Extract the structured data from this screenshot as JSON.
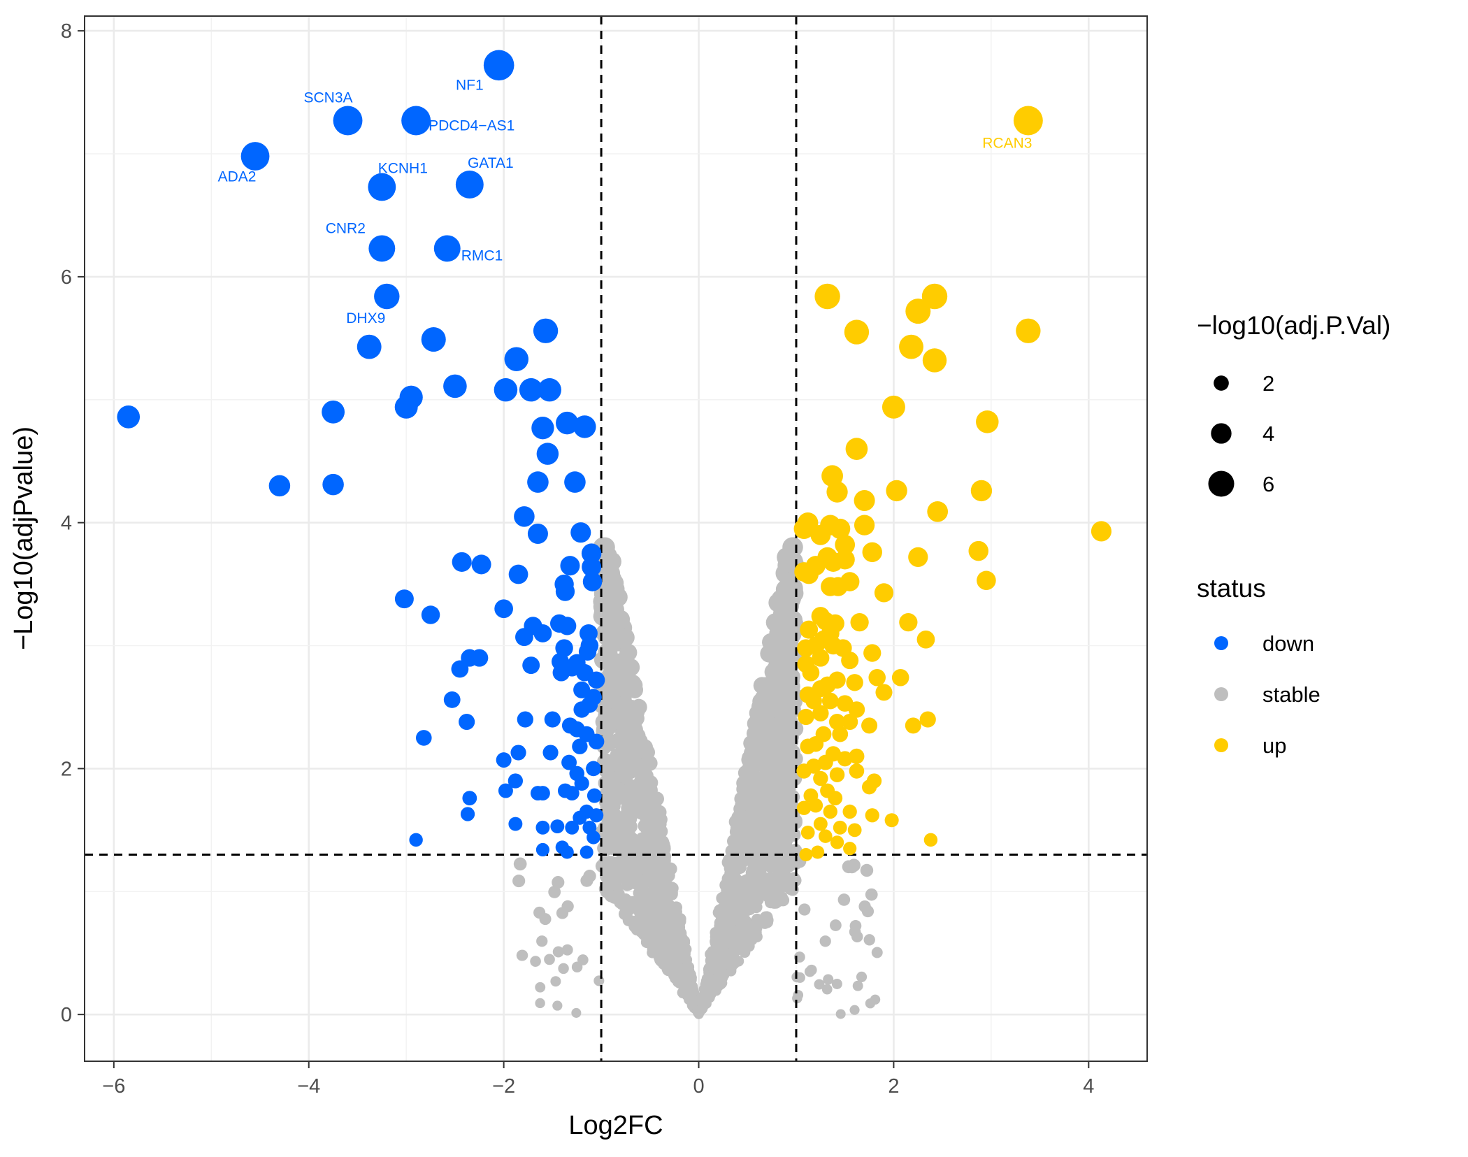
{
  "chart_data": {
    "type": "scatter",
    "title": "",
    "xlabel": "Log2FC",
    "ylabel": "−Log10(adjPvalue)",
    "xlim": [
      -6.3,
      4.6
    ],
    "ylim": [
      -0.38,
      8.12
    ],
    "x_ticks": [
      -6,
      -4,
      -2,
      0,
      2,
      4
    ],
    "x_tick_labels": [
      "−6",
      "−4",
      "−2",
      "0",
      "2",
      "4"
    ],
    "y_ticks": [
      0,
      2,
      4,
      6,
      8
    ],
    "y_tick_labels": [
      "0",
      "2",
      "4",
      "6",
      "8"
    ],
    "grid": true,
    "thresholds": {
      "x": [
        -1,
        1
      ],
      "y": 1.3
    },
    "colors": {
      "down": "#0066ff",
      "stable": "#bebebe",
      "up": "#ffcc00"
    },
    "legend": {
      "size_title": "−log10(adj.P.Val)",
      "size_items": [
        {
          "label": "2",
          "value": 2
        },
        {
          "label": "4",
          "value": 4
        },
        {
          "label": "6",
          "value": 6
        }
      ],
      "color_title": "status",
      "color_items": [
        {
          "label": "down",
          "status": "down"
        },
        {
          "label": "stable",
          "status": "stable"
        },
        {
          "label": "up",
          "status": "up"
        }
      ],
      "placement": "right"
    },
    "labels": [
      {
        "gene": "NF1",
        "x": -2.05,
        "y": 7.72,
        "status": "down"
      },
      {
        "gene": "SCN3A",
        "x": -3.6,
        "y": 7.27,
        "status": "down"
      },
      {
        "gene": "PDCD4−AS1",
        "x": -2.9,
        "y": 7.27,
        "status": "down"
      },
      {
        "gene": "ADA2",
        "x": -4.55,
        "y": 6.98,
        "status": "down"
      },
      {
        "gene": "KCNH1",
        "x": -3.25,
        "y": 6.73,
        "status": "down"
      },
      {
        "gene": "GATA1",
        "x": -2.35,
        "y": 6.75,
        "status": "down"
      },
      {
        "gene": "CNR2",
        "x": -3.25,
        "y": 6.23,
        "status": "down"
      },
      {
        "gene": "RMC1",
        "x": -2.58,
        "y": 6.23,
        "status": "down"
      },
      {
        "gene": "DHX9",
        "x": -3.2,
        "y": 5.84,
        "status": "down"
      },
      {
        "gene": "RCAN3",
        "x": 3.38,
        "y": 7.27,
        "status": "up"
      }
    ],
    "series": [
      {
        "name": "down",
        "points": [
          [
            -2.05,
            7.72
          ],
          [
            -3.6,
            7.27
          ],
          [
            -2.9,
            7.27
          ],
          [
            -4.55,
            6.98
          ],
          [
            -3.25,
            6.73
          ],
          [
            -2.35,
            6.75
          ],
          [
            -3.25,
            6.23
          ],
          [
            -2.58,
            6.23
          ],
          [
            -3.2,
            5.84
          ],
          [
            -5.85,
            4.86
          ],
          [
            -4.3,
            4.3
          ],
          [
            -3.75,
            4.31
          ],
          [
            -3.75,
            4.9
          ],
          [
            -3.0,
            4.94
          ],
          [
            -2.95,
            5.02
          ],
          [
            -3.38,
            5.43
          ],
          [
            -2.72,
            5.49
          ],
          [
            -2.5,
            5.11
          ],
          [
            -1.87,
            5.33
          ],
          [
            -1.57,
            5.56
          ],
          [
            -1.98,
            5.08
          ],
          [
            -1.72,
            5.08
          ],
          [
            -1.53,
            5.08
          ],
          [
            -1.6,
            4.77
          ],
          [
            -1.35,
            4.81
          ],
          [
            -1.17,
            4.78
          ],
          [
            -1.55,
            4.56
          ],
          [
            -1.65,
            4.33
          ],
          [
            -1.27,
            4.33
          ],
          [
            -1.79,
            4.05
          ],
          [
            -1.65,
            3.91
          ],
          [
            -1.21,
            3.92
          ],
          [
            -1.1,
            3.75
          ],
          [
            -1.1,
            3.64
          ],
          [
            -2.43,
            3.68
          ],
          [
            -2.23,
            3.66
          ],
          [
            -1.85,
            3.58
          ],
          [
            -1.32,
            3.65
          ],
          [
            -1.38,
            3.5
          ],
          [
            -1.37,
            3.44
          ],
          [
            -1.09,
            3.52
          ],
          [
            -3.02,
            3.38
          ],
          [
            -2.75,
            3.25
          ],
          [
            -2.0,
            3.3
          ],
          [
            -1.7,
            3.16
          ],
          [
            -1.6,
            3.1
          ],
          [
            -1.79,
            3.07
          ],
          [
            -1.43,
            3.18
          ],
          [
            -1.35,
            3.16
          ],
          [
            -1.13,
            3.1
          ],
          [
            -1.12,
            3.0
          ],
          [
            -1.14,
            2.95
          ],
          [
            -1.38,
            2.98
          ],
          [
            -1.42,
            2.87
          ],
          [
            -1.25,
            2.86
          ],
          [
            -1.72,
            2.84
          ],
          [
            -1.3,
            2.82
          ],
          [
            -1.41,
            2.78
          ],
          [
            -1.17,
            2.78
          ],
          [
            -1.05,
            2.72
          ],
          [
            -1.2,
            2.64
          ],
          [
            -1.08,
            2.58
          ],
          [
            -1.12,
            2.52
          ],
          [
            -1.2,
            2.48
          ],
          [
            -2.35,
            2.9
          ],
          [
            -2.25,
            2.9
          ],
          [
            -2.45,
            2.81
          ],
          [
            -2.53,
            2.56
          ],
          [
            -2.38,
            2.38
          ],
          [
            -1.78,
            2.4
          ],
          [
            -1.5,
            2.4
          ],
          [
            -1.32,
            2.35
          ],
          [
            -1.25,
            2.32
          ],
          [
            -1.15,
            2.28
          ],
          [
            -1.05,
            2.22
          ],
          [
            -1.22,
            2.18
          ],
          [
            -2.82,
            2.25
          ],
          [
            -1.85,
            2.13
          ],
          [
            -1.52,
            2.13
          ],
          [
            -1.33,
            2.05
          ],
          [
            -2.0,
            2.07
          ],
          [
            -1.08,
            2.0
          ],
          [
            -1.25,
            1.96
          ],
          [
            -1.2,
            1.88
          ],
          [
            -1.88,
            1.9
          ],
          [
            -1.37,
            1.82
          ],
          [
            -1.3,
            1.8
          ],
          [
            -1.65,
            1.8
          ],
          [
            -1.6,
            1.8
          ],
          [
            -1.98,
            1.82
          ],
          [
            -1.07,
            1.78
          ],
          [
            -2.35,
            1.76
          ],
          [
            -1.15,
            1.65
          ],
          [
            -1.05,
            1.62
          ],
          [
            -1.22,
            1.6
          ],
          [
            -2.37,
            1.63
          ],
          [
            -1.88,
            1.55
          ],
          [
            -1.45,
            1.53
          ],
          [
            -1.3,
            1.52
          ],
          [
            -1.12,
            1.52
          ],
          [
            -1.6,
            1.52
          ],
          [
            -1.08,
            1.44
          ],
          [
            -2.9,
            1.42
          ],
          [
            -1.4,
            1.36
          ],
          [
            -1.6,
            1.34
          ],
          [
            -1.15,
            1.32
          ],
          [
            -1.35,
            1.32
          ]
        ]
      },
      {
        "name": "up",
        "points": [
          [
            3.38,
            7.27
          ],
          [
            1.32,
            5.84
          ],
          [
            2.42,
            5.84
          ],
          [
            2.25,
            5.72
          ],
          [
            1.62,
            5.55
          ],
          [
            3.38,
            5.56
          ],
          [
            2.18,
            5.43
          ],
          [
            2.42,
            5.32
          ],
          [
            2.0,
            4.94
          ],
          [
            2.96,
            4.82
          ],
          [
            1.62,
            4.6
          ],
          [
            1.37,
            4.38
          ],
          [
            1.42,
            4.25
          ],
          [
            1.7,
            4.18
          ],
          [
            2.03,
            4.26
          ],
          [
            2.9,
            4.26
          ],
          [
            2.45,
            4.09
          ],
          [
            1.12,
            4.0
          ],
          [
            1.08,
            3.95
          ],
          [
            1.35,
            3.98
          ],
          [
            1.45,
            3.95
          ],
          [
            1.25,
            3.9
          ],
          [
            1.5,
            3.82
          ],
          [
            1.7,
            3.98
          ],
          [
            4.13,
            3.93
          ],
          [
            1.78,
            3.76
          ],
          [
            2.87,
            3.77
          ],
          [
            2.25,
            3.72
          ],
          [
            1.32,
            3.72
          ],
          [
            1.38,
            3.68
          ],
          [
            1.5,
            3.7
          ],
          [
            1.2,
            3.65
          ],
          [
            1.08,
            3.6
          ],
          [
            1.13,
            3.58
          ],
          [
            1.55,
            3.52
          ],
          [
            1.43,
            3.48
          ],
          [
            1.35,
            3.48
          ],
          [
            2.95,
            3.53
          ],
          [
            1.9,
            3.43
          ],
          [
            1.25,
            3.24
          ],
          [
            1.3,
            3.2
          ],
          [
            1.4,
            3.18
          ],
          [
            1.65,
            3.19
          ],
          [
            2.15,
            3.19
          ],
          [
            1.13,
            3.13
          ],
          [
            1.35,
            3.1
          ],
          [
            1.28,
            3.05
          ],
          [
            1.38,
            3.0
          ],
          [
            1.48,
            2.98
          ],
          [
            2.33,
            3.05
          ],
          [
            1.2,
            3.0
          ],
          [
            1.1,
            2.98
          ],
          [
            1.55,
            2.88
          ],
          [
            1.78,
            2.94
          ],
          [
            1.25,
            2.9
          ],
          [
            1.1,
            2.85
          ],
          [
            1.15,
            2.78
          ],
          [
            1.42,
            2.72
          ],
          [
            1.6,
            2.7
          ],
          [
            1.83,
            2.74
          ],
          [
            2.07,
            2.74
          ],
          [
            1.32,
            2.68
          ],
          [
            1.25,
            2.65
          ],
          [
            1.12,
            2.6
          ],
          [
            1.9,
            2.62
          ],
          [
            1.18,
            2.55
          ],
          [
            1.35,
            2.55
          ],
          [
            1.5,
            2.53
          ],
          [
            1.62,
            2.48
          ],
          [
            1.25,
            2.45
          ],
          [
            1.1,
            2.42
          ],
          [
            1.42,
            2.38
          ],
          [
            1.55,
            2.38
          ],
          [
            1.75,
            2.35
          ],
          [
            2.2,
            2.35
          ],
          [
            2.35,
            2.4
          ],
          [
            1.28,
            2.28
          ],
          [
            1.45,
            2.28
          ],
          [
            1.2,
            2.2
          ],
          [
            1.12,
            2.18
          ],
          [
            1.38,
            2.12
          ],
          [
            1.62,
            2.1
          ],
          [
            1.5,
            2.08
          ],
          [
            1.3,
            2.05
          ],
          [
            1.18,
            2.02
          ],
          [
            1.08,
            1.98
          ],
          [
            1.42,
            1.95
          ],
          [
            1.25,
            1.92
          ],
          [
            1.62,
            1.98
          ],
          [
            1.8,
            1.9
          ],
          [
            1.75,
            1.85
          ],
          [
            1.32,
            1.82
          ],
          [
            1.4,
            1.76
          ],
          [
            1.15,
            1.78
          ],
          [
            1.2,
            1.7
          ],
          [
            1.35,
            1.65
          ],
          [
            1.08,
            1.68
          ],
          [
            1.55,
            1.65
          ],
          [
            1.78,
            1.62
          ],
          [
            1.98,
            1.58
          ],
          [
            1.25,
            1.55
          ],
          [
            1.45,
            1.52
          ],
          [
            1.6,
            1.5
          ],
          [
            1.12,
            1.48
          ],
          [
            1.3,
            1.45
          ],
          [
            1.42,
            1.4
          ],
          [
            1.55,
            1.35
          ],
          [
            1.22,
            1.32
          ],
          [
            1.1,
            1.3
          ],
          [
            2.38,
            1.42
          ]
        ]
      }
    ],
    "stable_summary": {
      "name": "stable",
      "count": 1600,
      "x_range": [
        -1.0,
        1.0
      ],
      "y_range": [
        0,
        3.8
      ],
      "shape": "V-shaped cloud: -log10(p) rises roughly 3.6 per unit |log2FC|, plus sparse points below y = 1.3 outside the fold-change thresholds"
    }
  }
}
